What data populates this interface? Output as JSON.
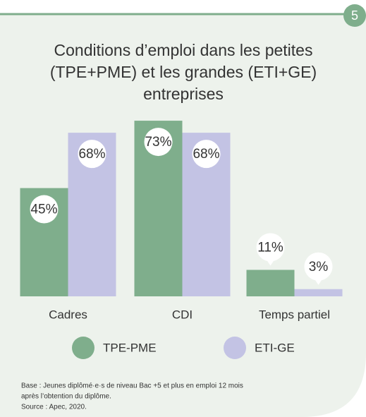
{
  "badge": "5",
  "chart_data": {
    "type": "bar",
    "title": "Conditions d’emploi dans les petites (TPE+PME) et les grandes (ETI+GE) entreprises",
    "categories": [
      "Cadres",
      "CDI",
      "Temps partiel"
    ],
    "series": [
      {
        "name": "TPE-PME",
        "color": "#7fae8c",
        "values": [
          45,
          73,
          11
        ],
        "value_labels": [
          "45%",
          "73%",
          "11%"
        ]
      },
      {
        "name": "ETI-GE",
        "color": "#c3c3e4",
        "values": [
          68,
          68,
          3
        ],
        "value_labels": [
          "68%",
          "68%",
          "3%"
        ]
      }
    ],
    "ylim": [
      0,
      100
    ]
  },
  "notes": [
    "Base : Jeunes diplômé·e·s de niveau Bac +5 et plus en emploi 12 mois",
    "après l’obtention du diplôme.",
    "Source : Apec, 2020."
  ]
}
